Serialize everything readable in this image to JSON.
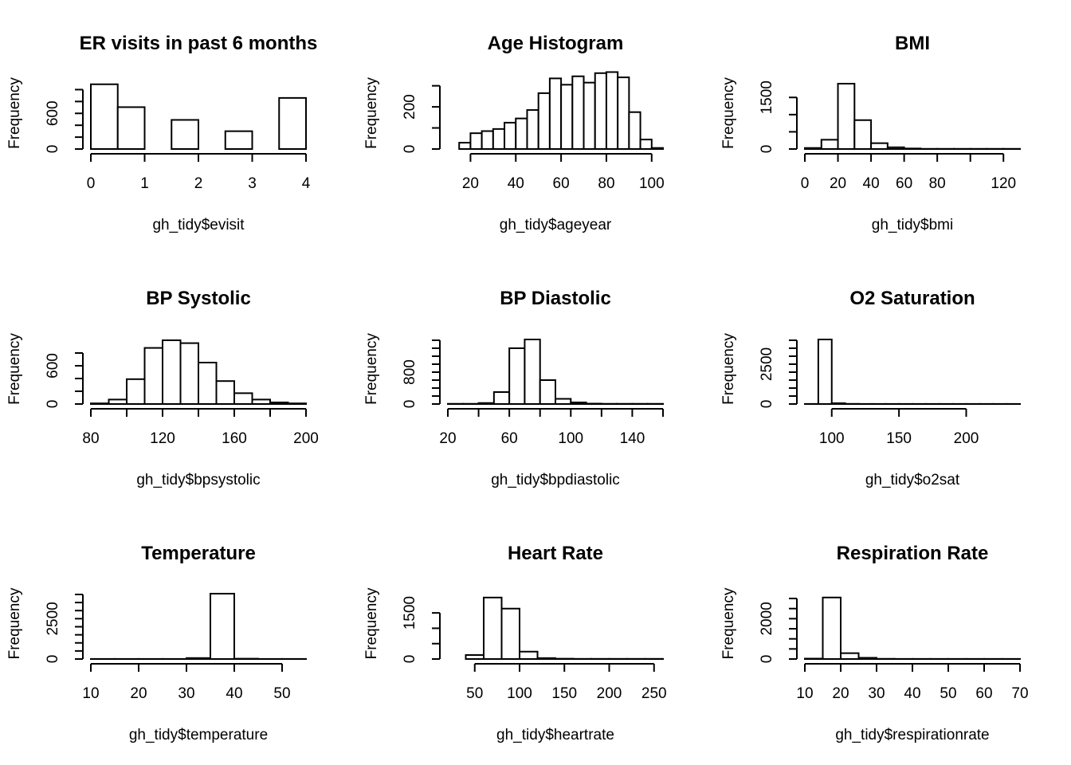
{
  "chart_data": [
    {
      "type": "bar",
      "title": "ER visits in past 6 months",
      "xlabel": "gh_tidy$evisit",
      "ylabel": "Frequency",
      "xlim": [
        0,
        4
      ],
      "ylim": [
        0,
        1100
      ],
      "xticks": [
        "0",
        "1",
        "2",
        "3",
        "4"
      ],
      "yticks": [
        "0",
        "600"
      ],
      "ytick_values": [
        0,
        200,
        400,
        600,
        800,
        1000
      ],
      "bins": [
        [
          0,
          0.5
        ],
        [
          0.5,
          1
        ],
        [
          1,
          1.5
        ],
        [
          1.5,
          2
        ],
        [
          2,
          2.5
        ],
        [
          2.5,
          3
        ],
        [
          3,
          3.5
        ],
        [
          3.5,
          4
        ]
      ],
      "values": [
        1090,
        705,
        0,
        490,
        0,
        300,
        0,
        860
      ]
    },
    {
      "type": "bar",
      "title": "Age Histogram",
      "xlabel": "gh_tidy$ageyear",
      "ylabel": "Frequency",
      "xlim": [
        10,
        105
      ],
      "ylim": [
        0,
        310
      ],
      "xticks": [
        "20",
        "40",
        "60",
        "80",
        "100"
      ],
      "yticks": [
        "0",
        "200"
      ],
      "ytick_values": [
        0,
        100,
        200,
        300
      ],
      "bins": [
        [
          15,
          20
        ],
        [
          20,
          25
        ],
        [
          25,
          30
        ],
        [
          30,
          35
        ],
        [
          35,
          40
        ],
        [
          40,
          45
        ],
        [
          45,
          50
        ],
        [
          50,
          55
        ],
        [
          55,
          60
        ],
        [
          60,
          65
        ],
        [
          65,
          70
        ],
        [
          70,
          75
        ],
        [
          75,
          80
        ],
        [
          80,
          85
        ],
        [
          85,
          90
        ],
        [
          90,
          95
        ],
        [
          95,
          100
        ],
        [
          100,
          105
        ]
      ],
      "values": [
        30,
        75,
        85,
        95,
        125,
        145,
        185,
        265,
        335,
        305,
        345,
        315,
        360,
        365,
        340,
        175,
        45,
        5
      ]
    },
    {
      "type": "bar",
      "title": "BMI",
      "xlabel": "gh_tidy$bmi",
      "ylabel": "Frequency",
      "xlim": [
        0,
        130
      ],
      "ylim": [
        0,
        1900
      ],
      "xticks": [
        "0",
        "20",
        "40",
        "60",
        "80",
        "120"
      ],
      "xtick_values": [
        0,
        20,
        40,
        60,
        80,
        100,
        120
      ],
      "yticks": [
        "0",
        "1500"
      ],
      "ytick_values": [
        0,
        500,
        1000,
        1500
      ],
      "bins": [
        [
          0,
          10
        ],
        [
          10,
          20
        ],
        [
          20,
          30
        ],
        [
          30,
          40
        ],
        [
          40,
          50
        ],
        [
          50,
          60
        ],
        [
          60,
          70
        ],
        [
          70,
          80
        ],
        [
          80,
          90
        ],
        [
          90,
          100
        ],
        [
          100,
          110
        ],
        [
          110,
          120
        ],
        [
          120,
          130
        ]
      ],
      "values": [
        30,
        270,
        1900,
        840,
        170,
        50,
        15,
        5,
        5,
        5,
        5,
        5,
        5
      ]
    },
    {
      "type": "bar",
      "title": "BP Systolic",
      "xlabel": "gh_tidy$bpsystolic",
      "ylabel": "Frequency",
      "xlim": [
        80,
        200
      ],
      "ylim": [
        0,
        1000
      ],
      "xticks": [
        "80",
        "120",
        "160",
        "200"
      ],
      "xtick_values": [
        80,
        100,
        120,
        140,
        160,
        180,
        200
      ],
      "yticks": [
        "0",
        "600"
      ],
      "ytick_values": [
        0,
        200,
        400,
        600,
        800
      ],
      "bins": [
        [
          80,
          90
        ],
        [
          90,
          100
        ],
        [
          100,
          110
        ],
        [
          110,
          120
        ],
        [
          120,
          130
        ],
        [
          130,
          140
        ],
        [
          140,
          150
        ],
        [
          150,
          160
        ],
        [
          160,
          170
        ],
        [
          170,
          180
        ],
        [
          180,
          190
        ],
        [
          190,
          200
        ]
      ],
      "values": [
        10,
        70,
        390,
        880,
        1000,
        955,
        650,
        360,
        170,
        70,
        25,
        10
      ]
    },
    {
      "type": "bar",
      "title": "BP Diastolic",
      "xlabel": "gh_tidy$bpdiastolic",
      "ylabel": "Frequency",
      "xlim": [
        20,
        160
      ],
      "ylim": [
        0,
        1600
      ],
      "xticks": [
        "20",
        "60",
        "100",
        "140"
      ],
      "xtick_values": [
        20,
        40,
        60,
        80,
        100,
        120,
        140,
        160
      ],
      "yticks": [
        "0",
        "800"
      ],
      "ytick_values": [
        0,
        200,
        400,
        600,
        800,
        1000,
        1200,
        1400,
        1600
      ],
      "bins": [
        [
          20,
          30
        ],
        [
          30,
          40
        ],
        [
          40,
          50
        ],
        [
          50,
          60
        ],
        [
          60,
          70
        ],
        [
          70,
          80
        ],
        [
          80,
          90
        ],
        [
          90,
          100
        ],
        [
          100,
          110
        ],
        [
          110,
          120
        ],
        [
          120,
          130
        ],
        [
          130,
          140
        ],
        [
          140,
          150
        ],
        [
          150,
          160
        ]
      ],
      "values": [
        5,
        5,
        25,
        300,
        1400,
        1620,
        600,
        130,
        40,
        10,
        5,
        5,
        5,
        5
      ]
    },
    {
      "type": "bar",
      "title": "O2 Saturation",
      "xlabel": "gh_tidy$o2sat",
      "ylabel": "Frequency",
      "xlim": [
        80,
        240
      ],
      "ylim": [
        0,
        4000
      ],
      "xticks": [
        "100",
        "150",
        "200"
      ],
      "xtick_values": [
        100,
        150,
        200
      ],
      "yticks": [
        "0",
        "2500"
      ],
      "ytick_values": [
        0,
        500,
        1000,
        1500,
        2000,
        2500,
        3000,
        3500,
        4000
      ],
      "bins": [
        [
          80,
          90
        ],
        [
          90,
          100
        ],
        [
          100,
          110
        ],
        [
          110,
          120
        ],
        [
          120,
          130
        ],
        [
          130,
          140
        ],
        [
          140,
          150
        ],
        [
          150,
          160
        ],
        [
          160,
          170
        ],
        [
          170,
          180
        ],
        [
          180,
          190
        ],
        [
          190,
          200
        ],
        [
          200,
          210
        ],
        [
          210,
          220
        ],
        [
          220,
          230
        ],
        [
          230,
          240
        ]
      ],
      "values": [
        5,
        4050,
        50,
        10,
        5,
        5,
        5,
        5,
        5,
        5,
        5,
        5,
        5,
        5,
        5,
        5
      ]
    },
    {
      "type": "bar",
      "title": "Temperature",
      "xlabel": "gh_tidy$temperature",
      "ylabel": "Frequency",
      "xlim": [
        10,
        55
      ],
      "ylim": [
        0,
        4000
      ],
      "xticks": [
        "10",
        "20",
        "30",
        "40",
        "50"
      ],
      "yticks": [
        "0",
        "2500"
      ],
      "ytick_values": [
        0,
        500,
        1000,
        1500,
        2000,
        2500,
        3000,
        3500,
        4000
      ],
      "bins": [
        [
          10,
          15
        ],
        [
          15,
          20
        ],
        [
          20,
          25
        ],
        [
          25,
          30
        ],
        [
          30,
          35
        ],
        [
          35,
          40
        ],
        [
          40,
          45
        ],
        [
          45,
          50
        ],
        [
          50,
          55
        ]
      ],
      "values": [
        5,
        5,
        5,
        5,
        60,
        4050,
        20,
        5,
        5
      ]
    },
    {
      "type": "bar",
      "title": "Heart Rate",
      "xlabel": "gh_tidy$heartrate",
      "ylabel": "Frequency",
      "xlim": [
        20,
        260
      ],
      "ylim": [
        0,
        2100
      ],
      "xticks": [
        "50",
        "100",
        "150",
        "200",
        "250"
      ],
      "xtick_values": [
        50,
        100,
        150,
        200,
        250
      ],
      "yticks": [
        "0",
        "1500"
      ],
      "ytick_values": [
        0,
        500,
        1000,
        1500
      ],
      "bins": [
        [
          40,
          60
        ],
        [
          60,
          80
        ],
        [
          80,
          100
        ],
        [
          100,
          120
        ],
        [
          120,
          140
        ],
        [
          140,
          160
        ],
        [
          160,
          180
        ],
        [
          180,
          200
        ],
        [
          200,
          220
        ],
        [
          220,
          240
        ],
        [
          240,
          260
        ]
      ],
      "values": [
        130,
        2000,
        1640,
        240,
        30,
        10,
        5,
        5,
        5,
        5,
        5
      ]
    },
    {
      "type": "bar",
      "title": "Respiration Rate",
      "xlabel": "gh_tidy$respirationrate",
      "ylabel": "Frequency",
      "xlim": [
        10,
        70
      ],
      "ylim": [
        0,
        3200
      ],
      "xticks": [
        "10",
        "20",
        "30",
        "40",
        "50",
        "60",
        "70"
      ],
      "yticks": [
        "0",
        "2000"
      ],
      "ytick_values": [
        0,
        500,
        1000,
        1500,
        2000,
        2500,
        3000
      ],
      "bins": [
        [
          10,
          15
        ],
        [
          15,
          20
        ],
        [
          20,
          25
        ],
        [
          25,
          30
        ],
        [
          30,
          35
        ],
        [
          35,
          40
        ],
        [
          40,
          45
        ],
        [
          45,
          50
        ],
        [
          50,
          55
        ],
        [
          55,
          60
        ],
        [
          60,
          65
        ],
        [
          65,
          70
        ]
      ],
      "values": [
        20,
        3050,
        290,
        60,
        10,
        5,
        5,
        5,
        5,
        5,
        5,
        5
      ]
    }
  ]
}
